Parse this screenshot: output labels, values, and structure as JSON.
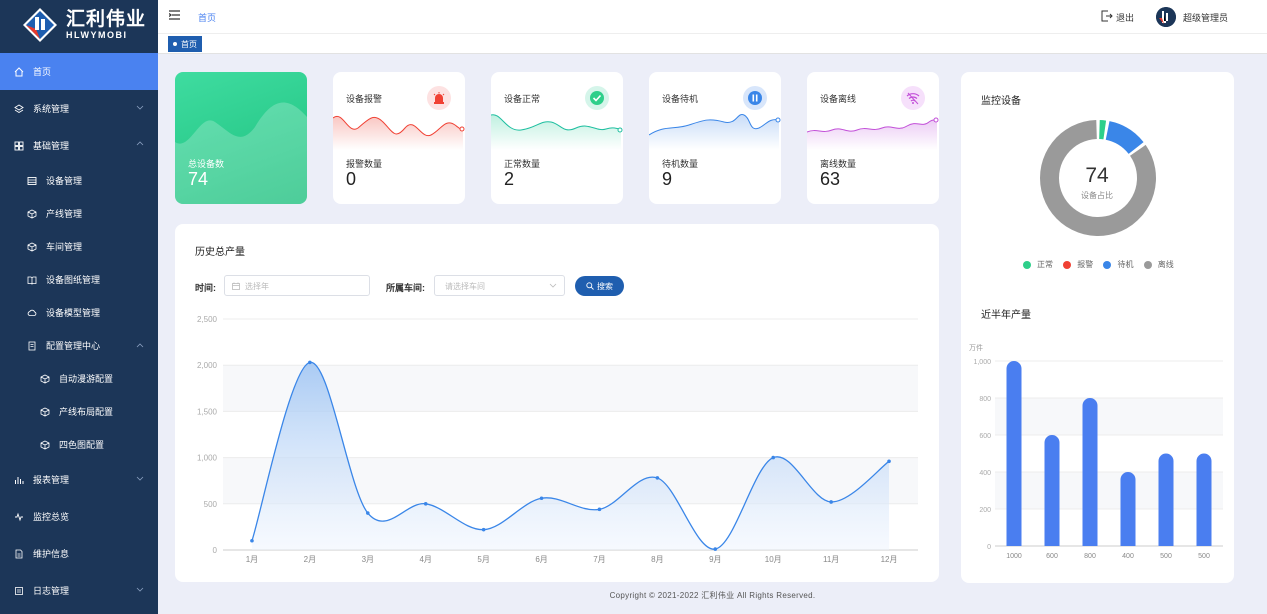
{
  "brand": {
    "name_cn": "汇利伟业",
    "name_en": "HLWYMOBI"
  },
  "sidebar": {
    "items": [
      {
        "label": "首页",
        "icon": "home-icon"
      },
      {
        "label": "系统管理",
        "icon": "layers-icon"
      },
      {
        "label": "基础管理",
        "icon": "grid-icon"
      },
      {
        "label": "设备管理",
        "icon": "table-icon"
      },
      {
        "label": "产线管理",
        "icon": "cube-icon"
      },
      {
        "label": "车间管理",
        "icon": "cube-icon"
      },
      {
        "label": "设备图纸管理",
        "icon": "book-icon"
      },
      {
        "label": "设备模型管理",
        "icon": "cloud-icon"
      },
      {
        "label": "配置管理中心",
        "icon": "document-icon"
      },
      {
        "label": "自动漫游配置",
        "icon": "cube-icon"
      },
      {
        "label": "产线布局配置",
        "icon": "cube-icon"
      },
      {
        "label": "四色图配置",
        "icon": "cube-icon"
      },
      {
        "label": "报表管理",
        "icon": "bar-chart-icon"
      },
      {
        "label": "监控总览",
        "icon": "pulse-icon"
      },
      {
        "label": "维护信息",
        "icon": "file-icon"
      },
      {
        "label": "日志管理",
        "icon": "log-icon"
      }
    ]
  },
  "header": {
    "breadcrumb": "首页",
    "logout": "退出",
    "user": "超级管理员",
    "tab": "首页"
  },
  "kpi": {
    "total": {
      "label": "总设备数",
      "value": "74"
    },
    "alarm": {
      "title": "设备报警",
      "label": "报警数量",
      "value": "0"
    },
    "normal": {
      "title": "设备正常",
      "label": "正常数量",
      "value": "2"
    },
    "standby": {
      "title": "设备待机",
      "label": "待机数量",
      "value": "9"
    },
    "offline": {
      "title": "设备离线",
      "label": "离线数量",
      "value": "63"
    }
  },
  "history": {
    "title": "历史总产量",
    "time_label": "时间:",
    "year_placeholder": "选择年",
    "workshop_label": "所属车间:",
    "workshop_placeholder": "请选择车间",
    "search_label": "搜索"
  },
  "monitor": {
    "title": "监控设备",
    "center_value": "74",
    "center_label": "设备占比",
    "legend": [
      "正常",
      "报警",
      "待机",
      "离线"
    ]
  },
  "half_year": {
    "title": "近半年产量",
    "unit": "万件"
  },
  "footer": "Copyright © 2021-2022 汇利伟业 All Rights Reserved.",
  "colors": {
    "sidebar": "#1c3658",
    "active": "#4a82f0",
    "green": "#2ecf8a",
    "red": "#f04134",
    "blue": "#3a86e8",
    "gray": "#9a9a9a",
    "purple": "#c24fd8",
    "teal": "#1ebfa0"
  },
  "chart_data": [
    {
      "type": "area",
      "categories": [
        "1月",
        "2月",
        "3月",
        "4月",
        "5月",
        "6月",
        "7月",
        "8月",
        "9月",
        "10月",
        "11月",
        "12月"
      ],
      "values": [
        100,
        2030,
        400,
        500,
        220,
        560,
        440,
        780,
        10,
        1000,
        520,
        960
      ],
      "ylim": [
        0,
        2500
      ],
      "yticks": [
        "0",
        "500",
        "1,000",
        "1,500",
        "2,000",
        "2,500"
      ],
      "grid": true
    },
    {
      "type": "pie",
      "labels": [
        "正常",
        "报警",
        "待机",
        "离线"
      ],
      "values": [
        2,
        0,
        9,
        63
      ]
    },
    {
      "type": "bar",
      "categories": [
        "1000",
        "600",
        "800",
        "400",
        "500",
        "500"
      ],
      "values": [
        1000,
        600,
        800,
        400,
        500,
        500
      ],
      "ylim": [
        0,
        1000
      ],
      "yticks": [
        "0",
        "200",
        "400",
        "600",
        "800",
        "1,000"
      ],
      "ylabel": "万件",
      "grid": true
    }
  ]
}
